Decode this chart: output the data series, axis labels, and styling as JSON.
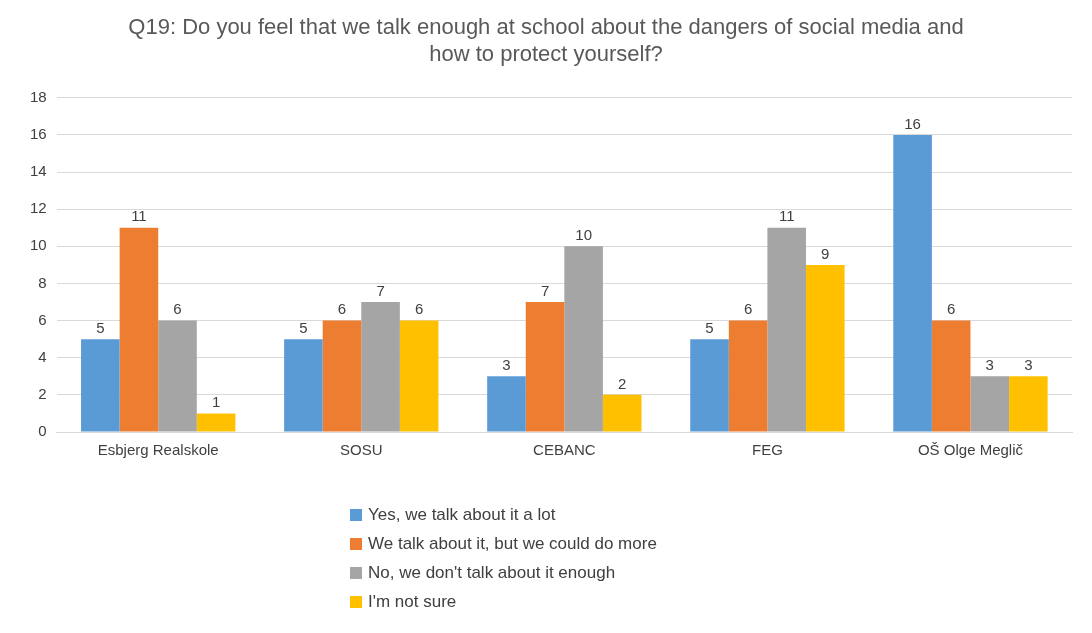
{
  "chart_data": {
    "type": "bar",
    "title": "Q19: Do you feel that we talk enough at school about the dangers of social media and how to protect yourself?",
    "categories": [
      "Esbjerg Realskole",
      "SOSU",
      "CEBANC",
      "FEG",
      "OŠ Olge Meglič"
    ],
    "series": [
      {
        "name": "Yes, we talk about it a lot",
        "color": "#5b9bd5",
        "values": [
          5,
          5,
          3,
          5,
          16
        ]
      },
      {
        "name": "We talk about it, but we could do more",
        "color": "#ed7d31",
        "values": [
          11,
          6,
          7,
          6,
          6
        ]
      },
      {
        "name": "No, we don't talk about it enough",
        "color": "#a5a5a5",
        "values": [
          6,
          7,
          10,
          11,
          3
        ]
      },
      {
        "name": "I'm not sure",
        "color": "#ffc000",
        "values": [
          1,
          6,
          2,
          9,
          3
        ]
      }
    ],
    "ylim": [
      0,
      18
    ],
    "yticks": [
      0,
      2,
      4,
      6,
      8,
      10,
      12,
      14,
      16,
      18
    ],
    "grid": "y",
    "legend": "bottom",
    "data_labels": true
  }
}
